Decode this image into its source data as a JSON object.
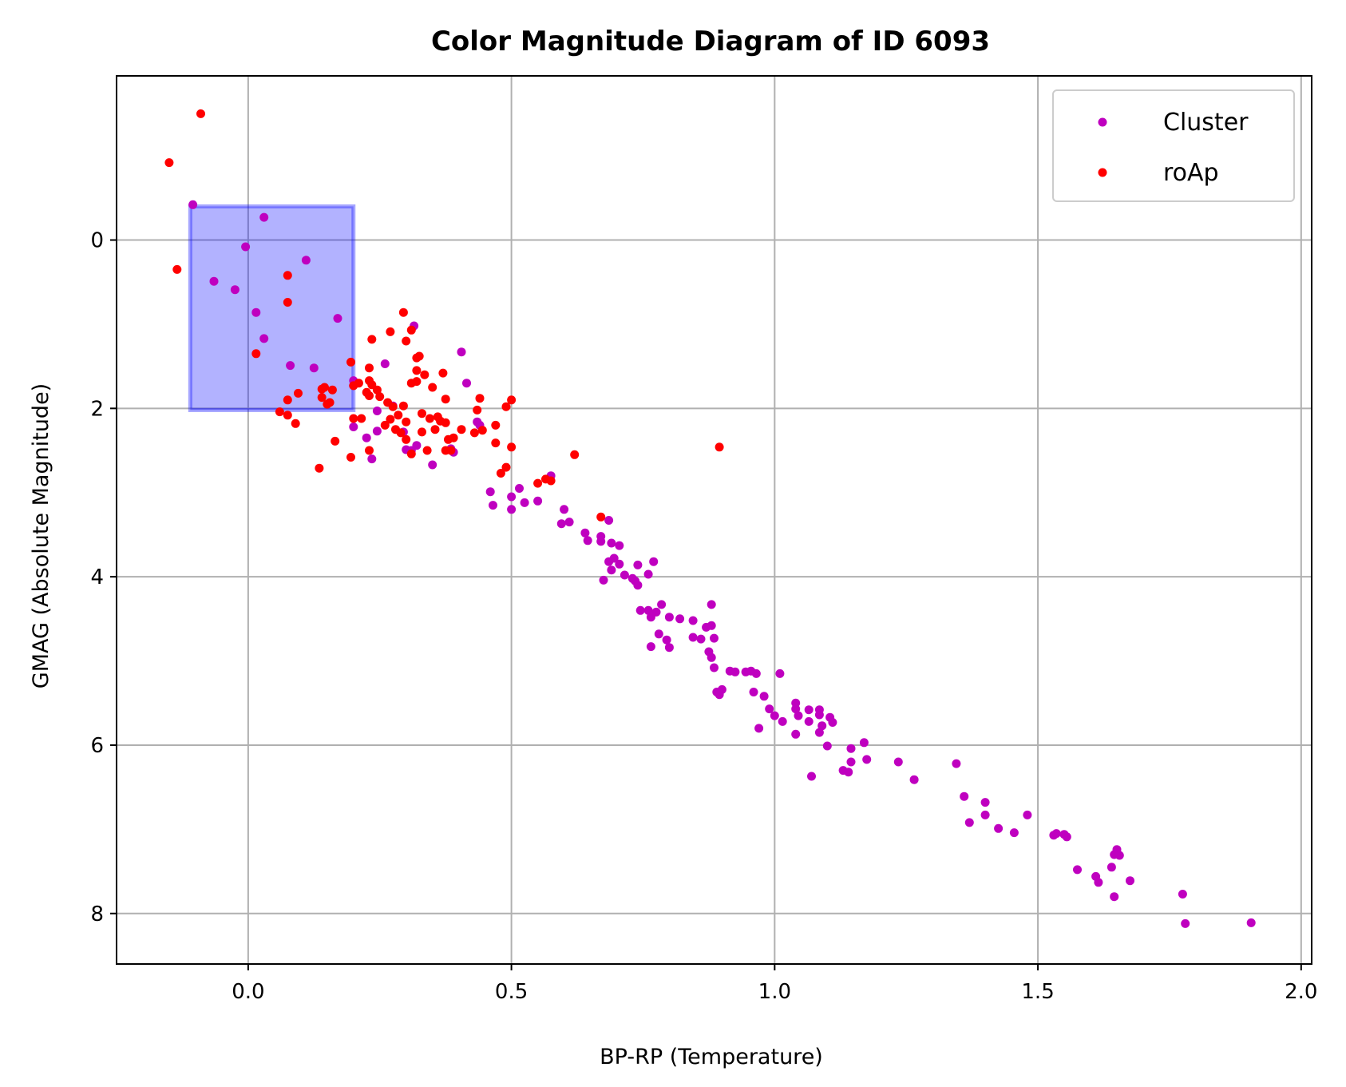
{
  "chart_data": {
    "type": "scatter",
    "title": "Color Magnitude Diagram of ID 6093",
    "xlabel": "BP-RP (Temperature)",
    "ylabel": "GMAG (Absolute Magnitude)",
    "xlim": [
      -0.25,
      2.02
    ],
    "ylim": [
      8.6,
      -1.95
    ],
    "y_inverted": true,
    "grid": true,
    "legend_position": "top-right",
    "xticks": [
      0.0,
      0.5,
      1.0,
      1.5,
      2.0
    ],
    "xtick_labels": [
      "0.0",
      "0.5",
      "1.0",
      "1.5",
      "2.0"
    ],
    "yticks": [
      0,
      2,
      4,
      6,
      8
    ],
    "ytick_labels": [
      "0",
      "2",
      "4",
      "6",
      "8"
    ],
    "highlight_region": {
      "x": [
        -0.11,
        0.2
      ],
      "y": [
        -0.4,
        2.02
      ],
      "color": "#0000ff"
    },
    "series": [
      {
        "name": "Cluster",
        "color": "#bf00bf",
        "points": [
          [
            -0.105,
            -0.42
          ],
          [
            0.03,
            -0.27
          ],
          [
            -0.005,
            0.08
          ],
          [
            -0.065,
            0.49
          ],
          [
            -0.025,
            0.59
          ],
          [
            0.11,
            0.24
          ],
          [
            0.015,
            0.86
          ],
          [
            0.17,
            0.93
          ],
          [
            0.03,
            1.17
          ],
          [
            0.08,
            1.49
          ],
          [
            0.125,
            1.52
          ],
          [
            0.2,
            1.67
          ],
          [
            0.2,
            1.73
          ],
          [
            0.26,
            1.47
          ],
          [
            0.315,
            1.02
          ],
          [
            0.405,
            1.33
          ],
          [
            0.415,
            1.7
          ],
          [
            0.275,
            1.97
          ],
          [
            0.245,
            2.03
          ],
          [
            0.2,
            2.22
          ],
          [
            0.225,
            2.35
          ],
          [
            0.245,
            2.27
          ],
          [
            0.295,
            2.28
          ],
          [
            0.31,
            2.5
          ],
          [
            0.32,
            2.44
          ],
          [
            0.3,
            2.49
          ],
          [
            0.235,
            2.6
          ],
          [
            0.35,
            2.67
          ],
          [
            0.39,
            2.52
          ],
          [
            0.385,
            2.48
          ],
          [
            0.435,
            2.16
          ],
          [
            0.44,
            2.2
          ],
          [
            0.46,
            2.99
          ],
          [
            0.465,
            3.15
          ],
          [
            0.5,
            3.05
          ],
          [
            0.515,
            2.95
          ],
          [
            0.525,
            3.12
          ],
          [
            0.5,
            3.2
          ],
          [
            0.55,
            3.1
          ],
          [
            0.575,
            2.8
          ],
          [
            0.6,
            3.2
          ],
          [
            0.61,
            3.35
          ],
          [
            0.595,
            3.37
          ],
          [
            0.64,
            3.48
          ],
          [
            0.645,
            3.57
          ],
          [
            0.67,
            3.52
          ],
          [
            0.67,
            3.58
          ],
          [
            0.685,
            3.33
          ],
          [
            0.69,
            3.6
          ],
          [
            0.705,
            3.63
          ],
          [
            0.685,
            3.82
          ],
          [
            0.695,
            3.78
          ],
          [
            0.705,
            3.85
          ],
          [
            0.69,
            3.92
          ],
          [
            0.675,
            4.04
          ],
          [
            0.715,
            3.98
          ],
          [
            0.73,
            4.02
          ],
          [
            0.74,
            3.86
          ],
          [
            0.74,
            4.1
          ],
          [
            0.76,
            3.97
          ],
          [
            0.77,
            3.82
          ],
          [
            0.735,
            4.05
          ],
          [
            0.745,
            4.4
          ],
          [
            0.76,
            4.4
          ],
          [
            0.765,
            4.48
          ],
          [
            0.775,
            4.42
          ],
          [
            0.785,
            4.33
          ],
          [
            0.78,
            4.68
          ],
          [
            0.765,
            4.83
          ],
          [
            0.795,
            4.75
          ],
          [
            0.8,
            4.84
          ],
          [
            0.8,
            4.48
          ],
          [
            0.82,
            4.5
          ],
          [
            0.845,
            4.52
          ],
          [
            0.845,
            4.72
          ],
          [
            0.86,
            4.74
          ],
          [
            0.87,
            4.6
          ],
          [
            0.88,
            4.58
          ],
          [
            0.885,
            4.73
          ],
          [
            0.875,
            4.89
          ],
          [
            0.88,
            4.96
          ],
          [
            0.885,
            5.08
          ],
          [
            0.88,
            4.33
          ],
          [
            0.915,
            5.12
          ],
          [
            0.925,
            5.13
          ],
          [
            0.945,
            5.13
          ],
          [
            0.955,
            5.12
          ],
          [
            0.965,
            5.15
          ],
          [
            1.01,
            5.15
          ],
          [
            0.89,
            5.37
          ],
          [
            0.9,
            5.34
          ],
          [
            0.895,
            5.4
          ],
          [
            0.96,
            5.37
          ],
          [
            0.98,
            5.42
          ],
          [
            0.99,
            5.57
          ],
          [
            1.0,
            5.65
          ],
          [
            0.97,
            5.8
          ],
          [
            1.015,
            5.72
          ],
          [
            1.04,
            5.5
          ],
          [
            1.04,
            5.57
          ],
          [
            1.045,
            5.65
          ],
          [
            1.065,
            5.58
          ],
          [
            1.065,
            5.72
          ],
          [
            1.085,
            5.58
          ],
          [
            1.085,
            5.64
          ],
          [
            1.09,
            5.77
          ],
          [
            1.085,
            5.85
          ],
          [
            1.105,
            5.67
          ],
          [
            1.11,
            5.73
          ],
          [
            1.04,
            5.87
          ],
          [
            1.1,
            6.01
          ],
          [
            1.07,
            6.37
          ],
          [
            1.13,
            6.3
          ],
          [
            1.14,
            6.32
          ],
          [
            1.145,
            6.04
          ],
          [
            1.145,
            6.2
          ],
          [
            1.17,
            5.97
          ],
          [
            1.175,
            6.17
          ],
          [
            1.235,
            6.2
          ],
          [
            1.265,
            6.41
          ],
          [
            1.345,
            6.22
          ],
          [
            1.36,
            6.61
          ],
          [
            1.37,
            6.92
          ],
          [
            1.4,
            6.68
          ],
          [
            1.4,
            6.83
          ],
          [
            1.425,
            6.99
          ],
          [
            1.455,
            7.04
          ],
          [
            1.48,
            6.83
          ],
          [
            1.53,
            7.07
          ],
          [
            1.535,
            7.05
          ],
          [
            1.55,
            7.06
          ],
          [
            1.555,
            7.09
          ],
          [
            1.575,
            7.48
          ],
          [
            1.61,
            7.56
          ],
          [
            1.615,
            7.63
          ],
          [
            1.64,
            7.45
          ],
          [
            1.645,
            7.3
          ],
          [
            1.645,
            7.8
          ],
          [
            1.65,
            7.24
          ],
          [
            1.655,
            7.31
          ],
          [
            1.675,
            7.61
          ],
          [
            1.775,
            7.77
          ],
          [
            1.78,
            8.12
          ],
          [
            1.905,
            8.11
          ]
        ]
      },
      {
        "name": "roAp",
        "color": "#ff0000",
        "points": [
          [
            -0.09,
            -1.5
          ],
          [
            -0.15,
            -0.92
          ],
          [
            -0.135,
            0.35
          ],
          [
            0.075,
            0.42
          ],
          [
            0.075,
            0.74
          ],
          [
            0.015,
            1.35
          ],
          [
            0.195,
            1.45
          ],
          [
            0.2,
            1.73
          ],
          [
            0.235,
            1.18
          ],
          [
            0.23,
            1.52
          ],
          [
            0.235,
            1.72
          ],
          [
            0.23,
            1.67
          ],
          [
            0.27,
            1.09
          ],
          [
            0.295,
            0.86
          ],
          [
            0.31,
            1.07
          ],
          [
            0.3,
            1.2
          ],
          [
            0.32,
            1.4
          ],
          [
            0.325,
            1.38
          ],
          [
            0.32,
            1.55
          ],
          [
            0.31,
            1.7
          ],
          [
            0.32,
            1.68
          ],
          [
            0.335,
            1.6
          ],
          [
            0.35,
            1.75
          ],
          [
            0.37,
            1.58
          ],
          [
            0.375,
            1.89
          ],
          [
            0.225,
            1.81
          ],
          [
            0.23,
            1.85
          ],
          [
            0.245,
            1.78
          ],
          [
            0.25,
            1.86
          ],
          [
            0.265,
            1.93
          ],
          [
            0.275,
            1.98
          ],
          [
            0.295,
            1.97
          ],
          [
            0.285,
            2.08
          ],
          [
            0.27,
            2.13
          ],
          [
            0.28,
            2.25
          ],
          [
            0.26,
            2.2
          ],
          [
            0.29,
            2.29
          ],
          [
            0.3,
            2.16
          ],
          [
            0.33,
            2.06
          ],
          [
            0.345,
            2.12
          ],
          [
            0.36,
            2.1
          ],
          [
            0.355,
            2.25
          ],
          [
            0.365,
            2.15
          ],
          [
            0.375,
            2.17
          ],
          [
            0.33,
            2.28
          ],
          [
            0.3,
            2.37
          ],
          [
            0.31,
            2.54
          ],
          [
            0.34,
            2.5
          ],
          [
            0.375,
            2.5
          ],
          [
            0.38,
            2.37
          ],
          [
            0.39,
            2.35
          ],
          [
            0.385,
            2.5
          ],
          [
            0.405,
            2.25
          ],
          [
            0.43,
            2.29
          ],
          [
            0.445,
            2.26
          ],
          [
            0.435,
            2.02
          ],
          [
            0.44,
            1.88
          ],
          [
            0.47,
            2.2
          ],
          [
            0.47,
            2.41
          ],
          [
            0.48,
            2.77
          ],
          [
            0.49,
            2.7
          ],
          [
            0.49,
            1.98
          ],
          [
            0.5,
            1.9
          ],
          [
            0.5,
            2.46
          ],
          [
            0.55,
            2.89
          ],
          [
            0.565,
            2.84
          ],
          [
            0.575,
            2.86
          ],
          [
            0.62,
            2.55
          ],
          [
            0.67,
            3.29
          ],
          [
            0.895,
            2.46
          ],
          [
            0.06,
            2.04
          ],
          [
            0.075,
            2.08
          ],
          [
            0.09,
            2.18
          ],
          [
            0.075,
            1.9
          ],
          [
            0.095,
            1.82
          ],
          [
            0.135,
            2.71
          ],
          [
            0.14,
            1.77
          ],
          [
            0.145,
            1.75
          ],
          [
            0.16,
            1.78
          ],
          [
            0.14,
            1.87
          ],
          [
            0.15,
            1.95
          ],
          [
            0.155,
            1.93
          ],
          [
            0.165,
            2.39
          ],
          [
            0.2,
            2.12
          ],
          [
            0.215,
            2.12
          ],
          [
            0.21,
            1.7
          ],
          [
            0.195,
            2.58
          ],
          [
            0.23,
            2.5
          ]
        ]
      }
    ]
  }
}
